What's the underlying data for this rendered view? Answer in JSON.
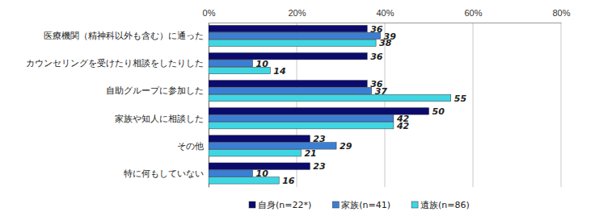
{
  "chart_data": {
    "type": "bar",
    "orientation": "horizontal",
    "categories": [
      "医療機関（精神科以外も含む）に通った",
      "カウンセリングを受けたり相談をしたりした",
      "自助グループに参加した",
      "家族や知人に相談した",
      "その他",
      "特に何もしていない"
    ],
    "series": [
      {
        "name": "自身(n=22*)",
        "color": "#0b0b6e",
        "values": [
          36,
          36,
          36,
          50,
          23,
          23
        ]
      },
      {
        "name": "家族(n=41)",
        "color": "#3b7fd4",
        "values": [
          39,
          10,
          37,
          42,
          29,
          10
        ]
      },
      {
        "name": "遺族(n=86)",
        "color": "#3fd6e4",
        "values": [
          38,
          14,
          55,
          42,
          21,
          16
        ]
      }
    ],
    "xlim": [
      0,
      80
    ],
    "xticks": [
      {
        "value": 0,
        "label": "0%"
      },
      {
        "value": 20,
        "label": "20%"
      },
      {
        "value": 40,
        "label": "40%"
      },
      {
        "value": 60,
        "label": "60%"
      },
      {
        "value": 80,
        "label": "80%"
      }
    ],
    "grid": true,
    "data_labels": true,
    "legend": "bottom"
  }
}
